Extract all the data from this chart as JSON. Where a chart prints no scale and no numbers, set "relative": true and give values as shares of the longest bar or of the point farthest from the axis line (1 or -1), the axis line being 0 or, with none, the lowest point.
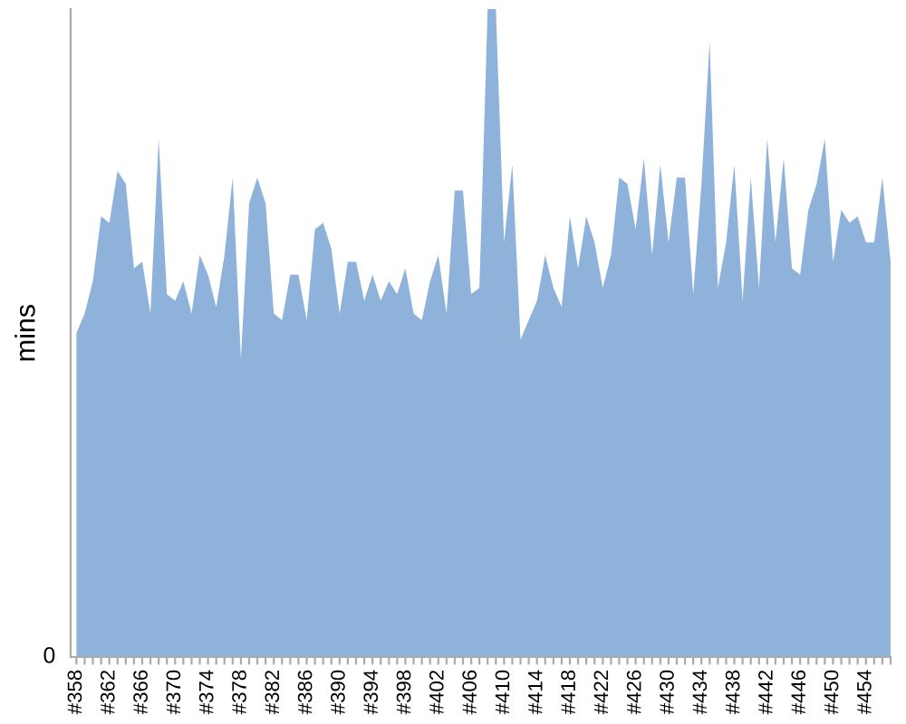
{
  "chart_data": {
    "type": "area",
    "ylabel": "mins",
    "relative": true,
    "color": "#8fb2db",
    "categories": [
      "#358",
      null,
      null,
      null,
      "#362",
      null,
      null,
      null,
      "#366",
      null,
      null,
      null,
      "#370",
      null,
      null,
      null,
      "#374",
      null,
      null,
      null,
      "#378",
      null,
      null,
      null,
      "#382",
      null,
      null,
      null,
      "#386",
      null,
      null,
      null,
      "#390",
      null,
      null,
      null,
      "#394",
      null,
      null,
      null,
      "#398",
      null,
      null,
      null,
      "#402",
      null,
      null,
      null,
      "#406",
      null,
      null,
      null,
      "#410",
      null,
      null,
      null,
      "#414",
      null,
      null,
      null,
      "#418",
      null,
      null,
      null,
      "#422",
      null,
      null,
      null,
      "#426",
      null,
      null,
      null,
      "#430",
      null,
      null,
      null,
      "#434",
      null,
      null,
      null,
      "#438",
      null,
      null,
      null,
      "#442",
      null,
      null,
      null,
      "#446",
      null,
      null,
      null,
      "#450",
      null,
      null,
      null,
      "#454",
      null,
      null,
      null
    ],
    "values": [
      0.5,
      0.53,
      0.58,
      0.68,
      0.67,
      0.75,
      0.73,
      0.6,
      0.61,
      0.53,
      0.8,
      0.56,
      0.55,
      0.58,
      0.53,
      0.62,
      0.59,
      0.54,
      0.62,
      0.74,
      0.46,
      0.7,
      0.74,
      0.7,
      0.53,
      0.52,
      0.59,
      0.59,
      0.52,
      0.66,
      0.67,
      0.63,
      0.53,
      0.61,
      0.61,
      0.55,
      0.59,
      0.55,
      0.58,
      0.56,
      0.6,
      0.53,
      0.52,
      0.58,
      0.62,
      0.53,
      0.72,
      0.72,
      0.56,
      0.57,
      1,
      1,
      0.64,
      0.76,
      0.49,
      0.52,
      0.55,
      0.62,
      0.57,
      0.54,
      0.68,
      0.6,
      0.68,
      0.64,
      0.57,
      0.62,
      0.74,
      0.73,
      0.66,
      0.77,
      0.62,
      0.76,
      0.64,
      0.74,
      0.74,
      0.56,
      0.73,
      0.95,
      0.57,
      0.64,
      0.76,
      0.55,
      0.74,
      0.57,
      0.8,
      0.64,
      0.77,
      0.6,
      0.59,
      0.69,
      0.73,
      0.8,
      0.61,
      0.69,
      0.67,
      0.68,
      0.64,
      0.64,
      0.74,
      0.61
    ],
    "annotations": [
      "0"
    ],
    "grid": false,
    "legend": false
  }
}
